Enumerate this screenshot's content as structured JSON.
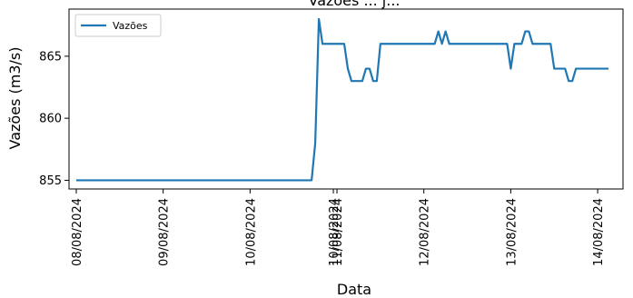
{
  "chart_data": {
    "type": "line",
    "title": "Vazões ... j...",
    "xlabel": "Data",
    "ylabel": "Vazões (m3/s)",
    "xlim": [
      "2024-08-07 22:00",
      "2024-08-14 07:00"
    ],
    "ylim": [
      854.3,
      868.8
    ],
    "y_ticks": [
      855,
      860,
      865
    ],
    "y_tick_labels": [
      "855",
      "860",
      "865"
    ],
    "x_ticks": [
      "2024-08-08",
      "2024-08-09",
      "2024-08-10",
      "2024-08-10 23:00",
      "2024-08-11",
      "2024-08-12",
      "2024-08-13",
      "2024-08-14"
    ],
    "x_tick_labels": [
      "08/08/2024",
      "09/08/2024",
      "10/08/2024",
      "10/08/2024",
      "11/08/2024",
      "12/08/2024",
      "13/08/2024",
      "14/08/2024"
    ],
    "grid": false,
    "legend": {
      "position": "top-left"
    },
    "series": [
      {
        "name": "Vazões",
        "color": "#1f77b4",
        "points": [
          [
            "2024-08-08 00:00",
            855
          ],
          [
            "2024-08-10 17:00",
            855
          ],
          [
            "2024-08-10 18:00",
            858
          ],
          [
            "2024-08-10 19:00",
            868
          ],
          [
            "2024-08-10 20:00",
            866
          ],
          [
            "2024-08-11 02:00",
            866
          ],
          [
            "2024-08-11 03:00",
            864
          ],
          [
            "2024-08-11 04:00",
            863
          ],
          [
            "2024-08-11 07:00",
            863
          ],
          [
            "2024-08-11 08:00",
            864
          ],
          [
            "2024-08-11 09:00",
            864
          ],
          [
            "2024-08-11 10:00",
            863
          ],
          [
            "2024-08-11 11:00",
            863
          ],
          [
            "2024-08-11 12:00",
            866
          ],
          [
            "2024-08-12 03:00",
            866
          ],
          [
            "2024-08-12 04:00",
            867
          ],
          [
            "2024-08-12 05:00",
            866
          ],
          [
            "2024-08-12 06:00",
            867
          ],
          [
            "2024-08-12 07:00",
            866
          ],
          [
            "2024-08-12 23:00",
            866
          ],
          [
            "2024-08-13 00:00",
            864
          ],
          [
            "2024-08-13 01:00",
            866
          ],
          [
            "2024-08-13 03:00",
            866
          ],
          [
            "2024-08-13 04:00",
            867
          ],
          [
            "2024-08-13 05:00",
            867
          ],
          [
            "2024-08-13 06:00",
            866
          ],
          [
            "2024-08-13 11:00",
            866
          ],
          [
            "2024-08-13 12:00",
            864
          ],
          [
            "2024-08-13 15:00",
            864
          ],
          [
            "2024-08-13 16:00",
            863
          ],
          [
            "2024-08-13 17:00",
            863
          ],
          [
            "2024-08-13 18:00",
            864
          ],
          [
            "2024-08-14 03:00",
            864
          ]
        ]
      }
    ]
  }
}
